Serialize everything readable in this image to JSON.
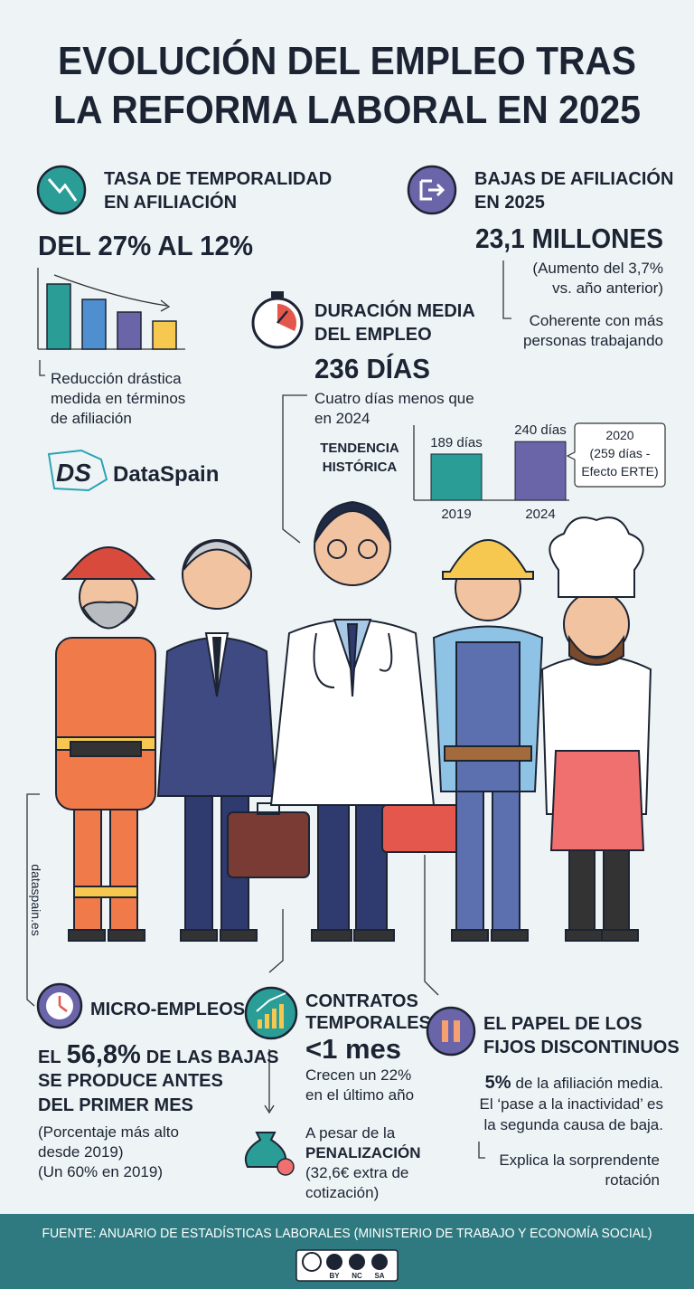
{
  "title": [
    "EVOLUCIÓN DEL EMPLEO TRAS",
    "LA REFORMA LABORAL EN 2025"
  ],
  "temporalidad": {
    "heading": [
      "TASA DE TEMPORALIDAD",
      "EN AFILIACIÓN"
    ],
    "headline": "DEL 27% AL 12%",
    "note": [
      "Reducción drástica",
      "medida en términos",
      "de afiliación"
    ]
  },
  "logo": "DataSpain",
  "bajas": {
    "heading": [
      "BAJAS DE AFILIACIÓN",
      "EN 2025"
    ],
    "headline": "23,1 MILLONES",
    "detail": [
      "(Aumento del 3,7%",
      "vs. año anterior)"
    ],
    "note": [
      "Coherente con más",
      "personas trabajando"
    ]
  },
  "duracion": {
    "heading": [
      "DURACIÓN MEDIA",
      "DEL EMPLEO"
    ],
    "headline": "236 DÍAS",
    "detail": [
      "Cuatro días menos que",
      "en 2024"
    ],
    "trend": {
      "title": [
        "TENDENCIA",
        "HISTÓRICA"
      ],
      "categories": [
        "2019",
        "2024"
      ],
      "values": [
        189,
        240
      ],
      "value_labels": [
        "189 días",
        "240 días"
      ],
      "colors": [
        "#2a9d96",
        "#6a64a8"
      ]
    },
    "callout": [
      "2020",
      "(259 días -",
      "Efecto ERTE)"
    ]
  },
  "website": "dataspain.es",
  "micro": {
    "heading": "MICRO-EMPLEOS",
    "lead": "EL",
    "figure": "56,8%",
    "rest": [
      "DE LAS BAJAS",
      "SE PRODUCE ANTES",
      "DEL PRIMER MES"
    ],
    "note": [
      "(Porcentaje más alto",
      "desde 2019)",
      "(Un 60% en 2019)"
    ]
  },
  "contratos": {
    "heading": [
      "CONTRATOS",
      "TEMPORALES"
    ],
    "headline": "<1 mes",
    "detail": [
      "Crecen un 22%",
      "en el último año"
    ],
    "penalty": [
      "A pesar de la",
      "PENALIZACIÓN",
      "(32,6€ extra de",
      "cotización)"
    ]
  },
  "fijos": {
    "heading": [
      "EL PAPEL DE LOS",
      "FIJOS DISCONTINUOS"
    ],
    "figure": "5%",
    "detail": [
      "de la afiliación media.",
      "El ‘pase a la inactividad’ es",
      "la segunda causa de baja."
    ],
    "note": [
      "Explica la sorprendente",
      "rotación"
    ]
  },
  "footer": {
    "source": "FUENTE: ANUARIO DE ESTADÍSTICAS LABORALES (MINISTERIO DE TRABAJO Y ECONOMÍA SOCIAL)",
    "license": [
      "BY",
      "NC",
      "SA"
    ]
  }
}
